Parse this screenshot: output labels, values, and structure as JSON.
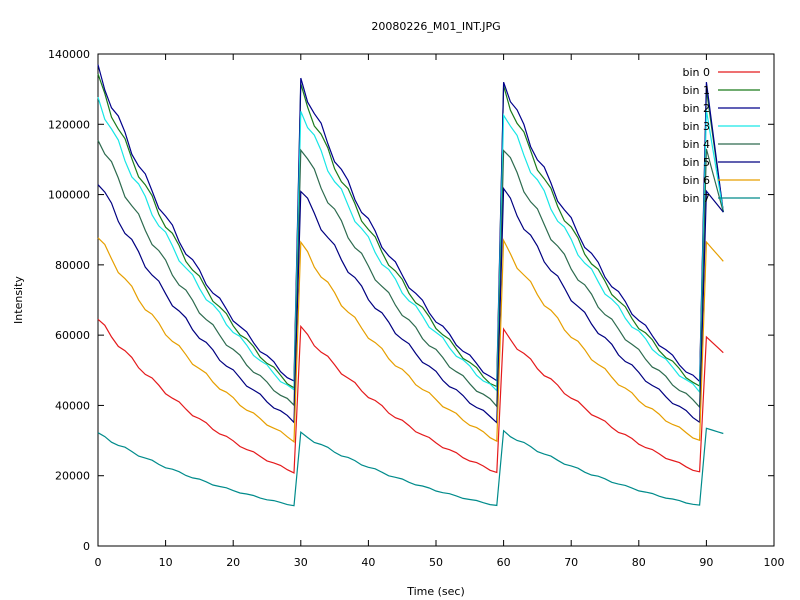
{
  "chart_data": {
    "type": "line",
    "title": "20080226_M01_INT.JPG",
    "xlabel": "Time (sec)",
    "ylabel": "Intensity",
    "xlim": [
      0,
      100
    ],
    "ylim": [
      0,
      140000
    ],
    "x_ticks": [
      0,
      10,
      20,
      30,
      40,
      50,
      60,
      70,
      80,
      90,
      100
    ],
    "y_ticks": [
      0,
      20000,
      40000,
      60000,
      80000,
      100000,
      120000,
      140000
    ],
    "grid": false,
    "legend_position": "top-right",
    "cycle": {
      "starts": [
        0,
        30,
        60,
        90
      ],
      "length": 30,
      "x_max": 92.5
    },
    "series": [
      {
        "name": "bin 0",
        "color": "#e41a1c",
        "cycle_values": [
          64500,
          62000,
          61000,
          59500
        ],
        "end_value": 21000,
        "final_value": 55000
      },
      {
        "name": "bin 1",
        "color": "#1a7a1a",
        "cycle_values": [
          133000,
          130000,
          130000,
          130000
        ],
        "end_value": 45000,
        "final_value": 95000
      },
      {
        "name": "bin 2",
        "color": "#00008b",
        "cycle_values": [
          135500,
          132500,
          132500,
          132000
        ],
        "end_value": 46500,
        "final_value": 95000
      },
      {
        "name": "bin 3",
        "color": "#19e6e6",
        "cycle_values": [
          127500,
          124500,
          124000,
          124000
        ],
        "end_value": 44000,
        "final_value": 95000
      },
      {
        "name": "bin 4",
        "color": "#2e6b4f",
        "cycle_values": [
          116500,
          114000,
          113500,
          113000
        ],
        "end_value": 40000,
        "final_value": 95000
      },
      {
        "name": "bin 5",
        "color": "#000080",
        "cycle_values": [
          104000,
          101500,
          101500,
          101000
        ],
        "end_value": 35500,
        "final_value": 95000
      },
      {
        "name": "bin 6",
        "color": "#e69f00",
        "cycle_values": [
          88000,
          86000,
          86000,
          86500
        ],
        "end_value": 30000,
        "final_value": 81000
      },
      {
        "name": "bin 7",
        "color": "#008b8b",
        "cycle_values": [
          32000,
          32000,
          32500,
          33500
        ],
        "end_value": 11500,
        "final_value": 32000
      }
    ]
  }
}
